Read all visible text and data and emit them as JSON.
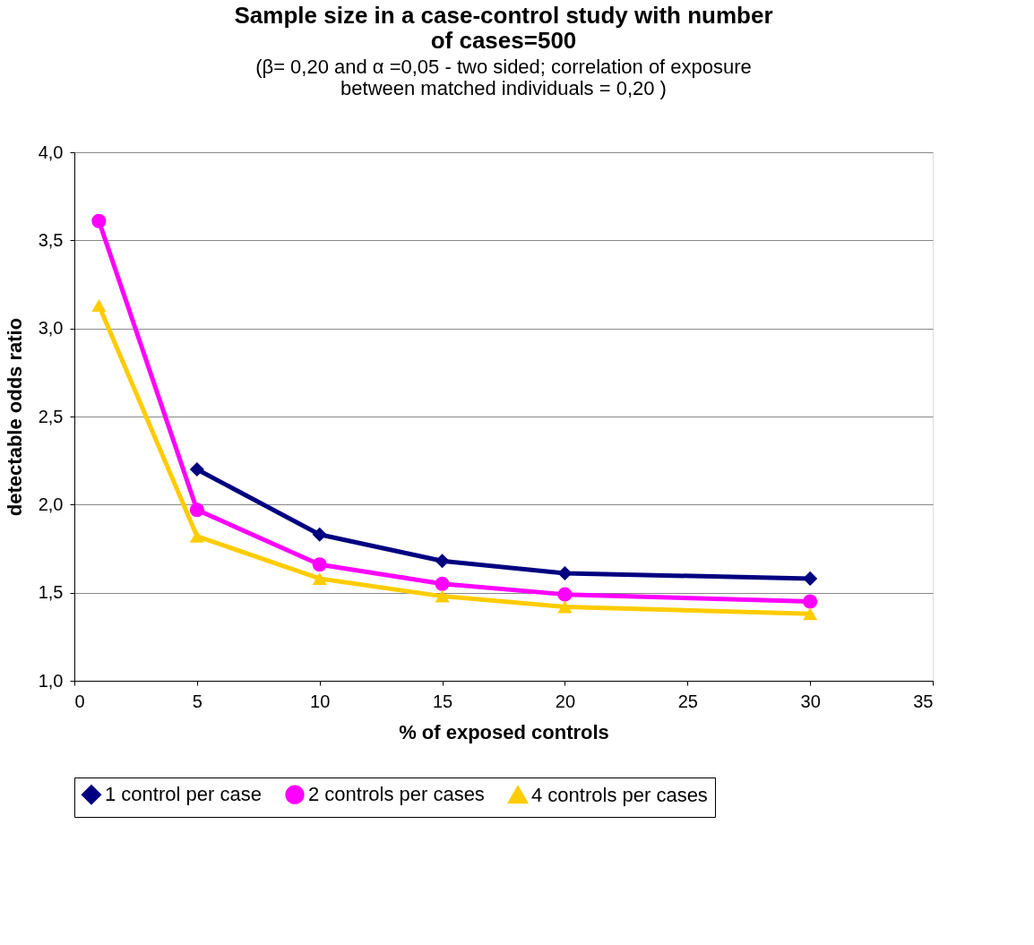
{
  "chart_data": {
    "type": "line",
    "title": "Sample size in a case-control study with number of cases=500",
    "subtitle": "(β= 0,20 and α =0,05 - two sided; correlation of exposure between matched individuals = 0,20 )",
    "xlabel": "% of exposed controls",
    "ylabel": "detectable odds ratio",
    "x": [
      1,
      5,
      10,
      15,
      20,
      30
    ],
    "series": [
      {
        "name": "1 control per case",
        "color": "#000080",
        "marker": "diamond",
        "values": [
          null,
          2.2,
          1.83,
          1.68,
          1.61,
          1.58
        ]
      },
      {
        "name": "2 controls per cases",
        "color": "#ff00ff",
        "marker": "circle",
        "values": [
          3.61,
          1.97,
          1.66,
          1.55,
          1.49,
          1.45
        ]
      },
      {
        "name": "4 controls per cases",
        "color": "#ffcc00",
        "marker": "triangle",
        "values": [
          3.13,
          1.82,
          1.58,
          1.48,
          1.42,
          1.38
        ]
      }
    ],
    "xlim": [
      0,
      35
    ],
    "xticks": [
      0,
      5,
      10,
      15,
      20,
      25,
      30,
      35
    ],
    "ylim": [
      1.0,
      4.0
    ],
    "yticks": [
      {
        "value": 1.0,
        "label": "1,0"
      },
      {
        "value": 1.5,
        "label": "1,5"
      },
      {
        "value": 2.0,
        "label": "2,0"
      },
      {
        "value": 2.5,
        "label": "2,5"
      },
      {
        "value": 3.0,
        "label": "3,0"
      },
      {
        "value": 3.5,
        "label": "3,5"
      },
      {
        "value": 4.0,
        "label": "4,0"
      }
    ],
    "grid": "y",
    "legend": "bottom",
    "line_style": "solid"
  }
}
